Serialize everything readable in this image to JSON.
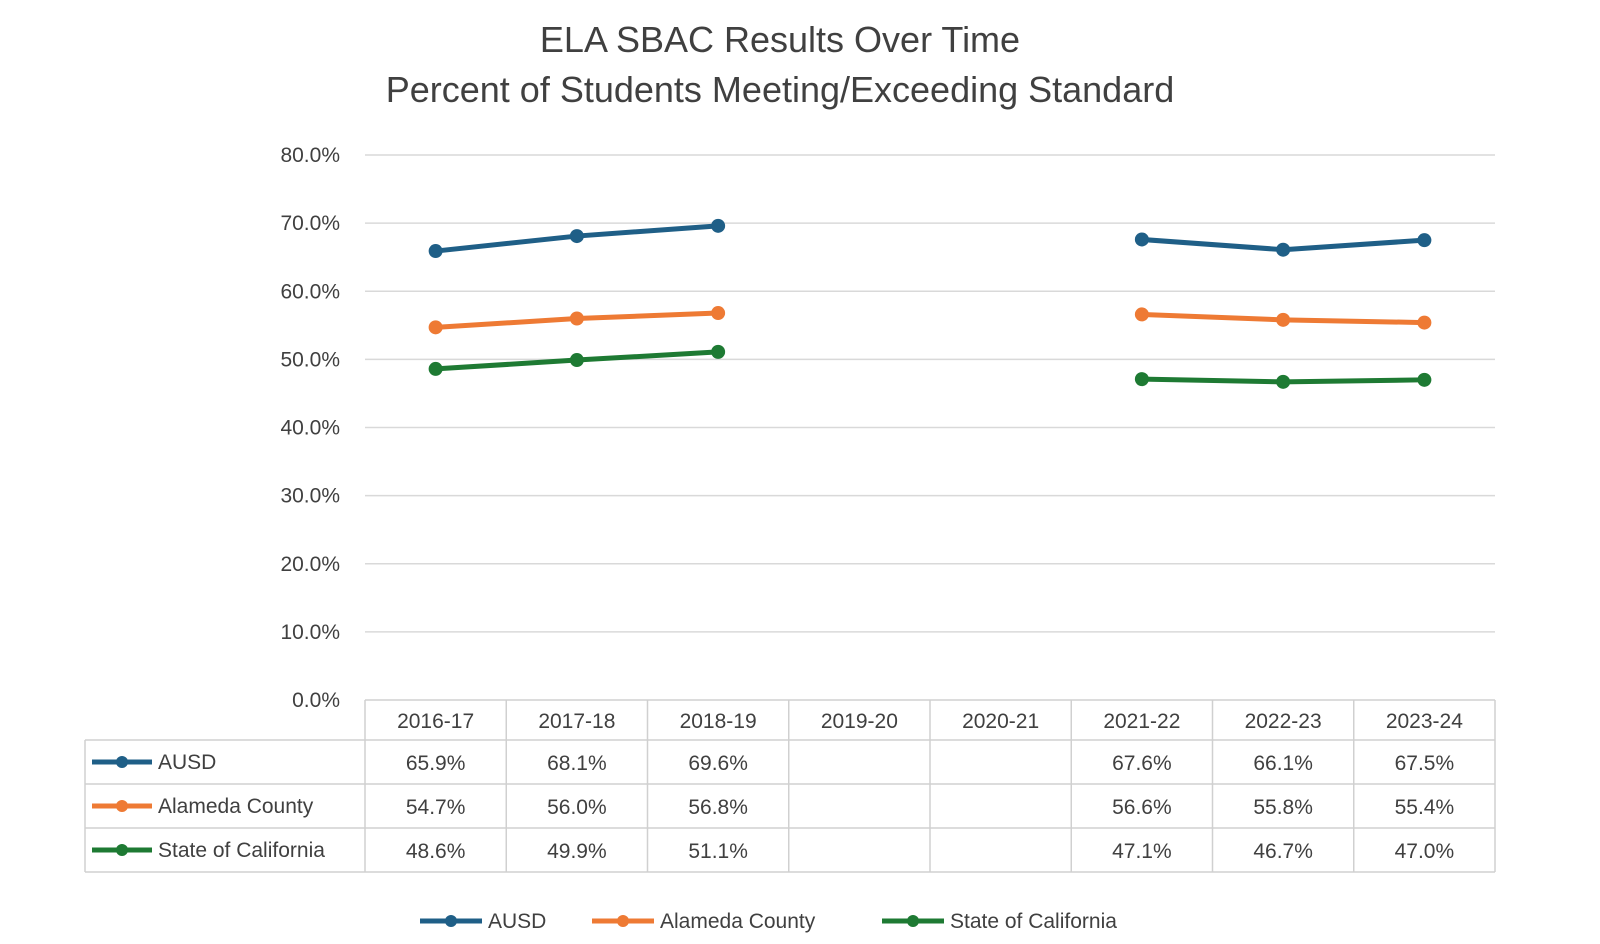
{
  "chart_data": {
    "type": "line",
    "title": "ELA SBAC Results Over Time",
    "subtitle": "Percent of Students Meeting/Exceeding Standard",
    "categories": [
      "2016-17",
      "2017-18",
      "2018-19",
      "2019-20",
      "2020-21",
      "2021-22",
      "2022-23",
      "2023-24"
    ],
    "ylim": [
      0,
      80
    ],
    "yticks": [
      "80.0%",
      "70.0%",
      "60.0%",
      "50.0%",
      "40.0%",
      "30.0%",
      "20.0%",
      "10.0%",
      "0.0%"
    ],
    "ytick_values": [
      80,
      70,
      60,
      50,
      40,
      30,
      20,
      10,
      0
    ],
    "grid": true,
    "legend_position": "bottom",
    "data_table": true,
    "series": [
      {
        "name": "AUSD",
        "color": "#1f5f87",
        "values": [
          65.9,
          68.1,
          69.6,
          null,
          null,
          67.6,
          66.1,
          67.5
        ],
        "labels": [
          "65.9%",
          "68.1%",
          "69.6%",
          "",
          "",
          "67.6%",
          "66.1%",
          "67.5%"
        ]
      },
      {
        "name": "Alameda County",
        "color": "#ee7a34",
        "values": [
          54.7,
          56.0,
          56.8,
          null,
          null,
          56.6,
          55.8,
          55.4
        ],
        "labels": [
          "54.7%",
          "56.0%",
          "56.8%",
          "",
          "",
          "56.6%",
          "55.8%",
          "55.4%"
        ]
      },
      {
        "name": "State of California",
        "color": "#1e7a33",
        "values": [
          48.6,
          49.9,
          51.1,
          null,
          null,
          47.1,
          46.7,
          47.0
        ],
        "labels": [
          "48.6%",
          "49.9%",
          "51.1%",
          "",
          "",
          "47.1%",
          "46.7%",
          "47.0%"
        ]
      }
    ]
  }
}
